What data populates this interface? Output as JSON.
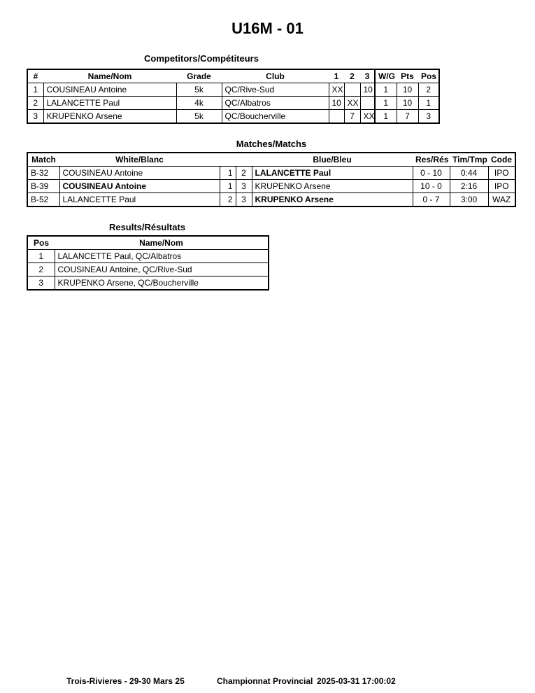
{
  "title": "U16M - 01",
  "competitors": {
    "heading": "Competitors/Compétiteurs",
    "headers": [
      "#",
      "Name/Nom",
      "Grade",
      "Club",
      "1",
      "2",
      "3",
      "W/G",
      "Pts",
      "Pos"
    ],
    "rows": [
      [
        "1",
        "COUSINEAU Antoine",
        "5k",
        "QC/Rive-Sud",
        "XX",
        "",
        "10",
        "1",
        "10",
        "2"
      ],
      [
        "2",
        "LALANCETTE Paul",
        "4k",
        "QC/Albatros",
        "10",
        "XX",
        "",
        "1",
        "10",
        "1"
      ],
      [
        "3",
        "KRUPENKO Arsene",
        "5k",
        "QC/Boucherville",
        "",
        "7",
        "XX",
        "1",
        "7",
        "3"
      ]
    ]
  },
  "matches": {
    "heading": "Matches/Matchs",
    "headers": [
      "Match",
      "White/Blanc",
      "Blue/Bleu",
      "Res/Rés",
      "Tim/Tmp",
      "Code"
    ],
    "rows": [
      {
        "match": "B-32",
        "white": "COUSINEAU Antoine",
        "white_no": "1",
        "blue_no": "2",
        "blue": "LALANCETTE Paul",
        "res": "0 - 10",
        "time": "0:44",
        "code": "IPO",
        "winner": "blue"
      },
      {
        "match": "B-39",
        "white": "COUSINEAU Antoine",
        "white_no": "1",
        "blue_no": "3",
        "blue": "KRUPENKO Arsene",
        "res": "10 - 0",
        "time": "2:16",
        "code": "IPO",
        "winner": "white"
      },
      {
        "match": "B-52",
        "white": "LALANCETTE Paul",
        "white_no": "2",
        "blue_no": "3",
        "blue": "KRUPENKO Arsene",
        "res": "0 - 7",
        "time": "3:00",
        "code": "WAZ",
        "winner": "blue"
      }
    ]
  },
  "results": {
    "heading": "Results/Résultats",
    "headers": [
      "Pos",
      "Name/Nom"
    ],
    "rows": [
      [
        "1",
        "LALANCETTE Paul, QC/Albatros"
      ],
      [
        "2",
        "COUSINEAU Antoine, QC/Rive-Sud"
      ],
      [
        "3",
        "KRUPENKO Arsene, QC/Boucherville"
      ]
    ]
  },
  "footer": {
    "location": "Trois-Rivieres - 29-30 Mars 25",
    "event": "Championnat Provincial",
    "timestamp": "2025-03-31 17:00:02"
  }
}
